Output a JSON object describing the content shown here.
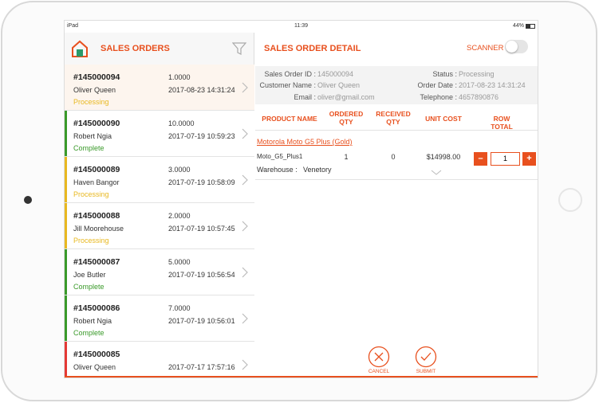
{
  "status_bar": {
    "carrier": "iPad",
    "time": "11:39",
    "battery": "44%"
  },
  "sidebar": {
    "title": "SALES ORDERS",
    "orders": [
      {
        "id": "#145000094",
        "qty": "1.0000",
        "customer": "Oliver Queen",
        "date": "2017-08-23 14:31:24",
        "status": "Processing"
      },
      {
        "id": "#145000090",
        "qty": "10.0000",
        "customer": "Robert Ngia",
        "date": "2017-07-19 10:59:23",
        "status": "Complete"
      },
      {
        "id": "#145000089",
        "qty": "3.0000",
        "customer": "Haven Bangor",
        "date": "2017-07-19 10:58:09",
        "status": "Processing"
      },
      {
        "id": "#145000088",
        "qty": "2.0000",
        "customer": "Jill Moorehouse",
        "date": "2017-07-19 10:57:45",
        "status": "Processing"
      },
      {
        "id": "#145000087",
        "qty": "5.0000",
        "customer": "Joe Butler",
        "date": "2017-07-19 10:56:54",
        "status": "Complete"
      },
      {
        "id": "#145000086",
        "qty": "7.0000",
        "customer": "Robert Ngia",
        "date": "2017-07-19 10:56:01",
        "status": "Complete"
      },
      {
        "id": "#145000085",
        "customer": "Oliver Queen",
        "date": "2017-07-17 17:57:16"
      }
    ]
  },
  "detail": {
    "title": "SALES ORDER DETAIL",
    "scanner": "SCANNER",
    "info": {
      "order_id_label": "Sales Order ID :",
      "order_id": "145000094",
      "customer_label": "Customer Name :",
      "customer": "Oliver Queen",
      "email_label": "Email :",
      "email": "oliver@gmail.com",
      "status_label": "Status :",
      "status": "Processing",
      "date_label": "Order Date :",
      "date": "2017-08-23 14:31:24",
      "phone_label": "Telephone :",
      "phone": "4657890876"
    },
    "table": {
      "headers": [
        "PRODUCT NAME",
        "ORDERED QTY",
        "RECEIVED QTY",
        "UNIT COST",
        "ROW TOTAL"
      ],
      "item": {
        "name": "Motorola Moto G5 Plus (Gold)",
        "sku": "Moto_G5_Plus1",
        "ordered": "1",
        "received": "0",
        "unit_cost": "$14998.00",
        "row_total": "1",
        "warehouse_label": "Warehouse :",
        "warehouse": "Venetory"
      }
    },
    "actions": {
      "cancel": "CANCEL",
      "submit": "SUBMIT"
    }
  }
}
